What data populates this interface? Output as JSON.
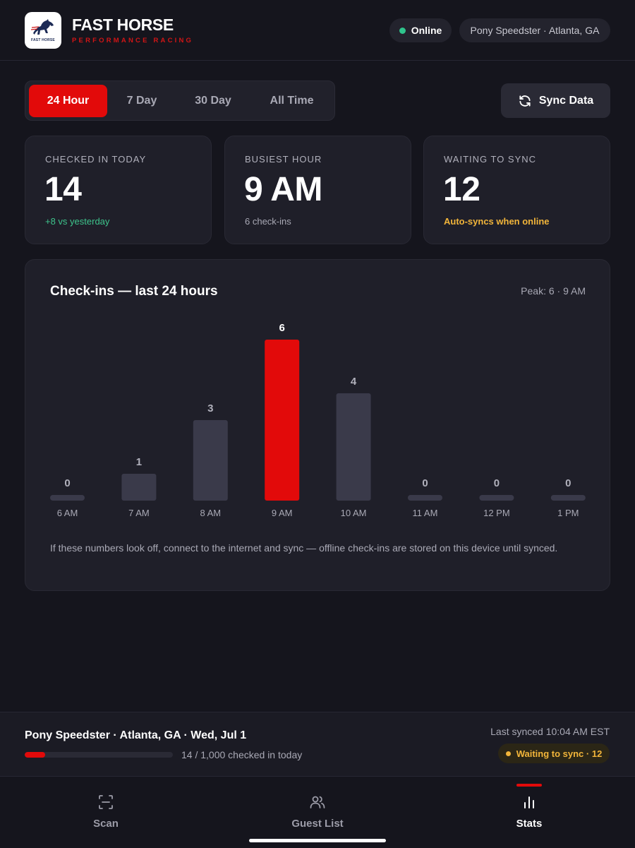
{
  "header": {
    "brand_title": "FAST HORSE",
    "brand_subtitle": "PERFORMANCE RACING",
    "logo_text": "FAST HORSE",
    "status_label": "Online",
    "venue_label": "Pony Speedster · Atlanta, GA",
    "accent_color": "#e20a0a"
  },
  "range_tabs": {
    "items": [
      "24 Hour",
      "7 Day",
      "30 Day",
      "All Time"
    ],
    "selected": "24 Hour"
  },
  "sync_button": {
    "label": "Sync Data",
    "icon": "refresh-icon"
  },
  "stats": [
    {
      "label": "CHECKED IN TODAY",
      "value": "14",
      "note": "+8 vs yesterday",
      "note_color": "#3ec48c"
    },
    {
      "label": "BUSIEST HOUR",
      "value": "9 AM",
      "note": "6 check-ins",
      "note_color": "#a9a9b5"
    },
    {
      "label": "WAITING TO SYNC",
      "value": "12",
      "note": "Auto-syncs when online",
      "note_color": "#f2b53a"
    }
  ],
  "chart": {
    "title": "Check-ins — last 24 hours",
    "peak_label": "Peak: 6 · 9 AM",
    "footnote": "If these numbers look off, connect to the internet and sync — offline check-ins are stored on this device until synced."
  },
  "chart_data": {
    "type": "bar",
    "categories": [
      "6 AM",
      "7 AM",
      "8 AM",
      "9 AM",
      "10 AM",
      "11 AM",
      "12 PM",
      "1 PM"
    ],
    "values": [
      0,
      1,
      3,
      6,
      4,
      0,
      0,
      0
    ],
    "highlight_category": "9 AM",
    "bar_color": "#3a3a4a",
    "highlight_color": "#e20a0a",
    "ylim": [
      0,
      6
    ],
    "grid": false
  },
  "status_bar": {
    "event_label": "Pony Speedster · Atlanta, GA · Wed, Jul 1",
    "checked_in": 14,
    "capacity": 1000,
    "progress_text": "14 / 1,000 checked in today",
    "last_synced": "Last synced 10:04 AM EST",
    "waiting_badge": "Waiting to sync · 12"
  },
  "nav": {
    "items": [
      {
        "label": "Scan",
        "icon": "scan-icon"
      },
      {
        "label": "Guest List",
        "icon": "users-icon"
      },
      {
        "label": "Stats",
        "icon": "bar-chart-icon"
      }
    ],
    "active": "Stats"
  }
}
